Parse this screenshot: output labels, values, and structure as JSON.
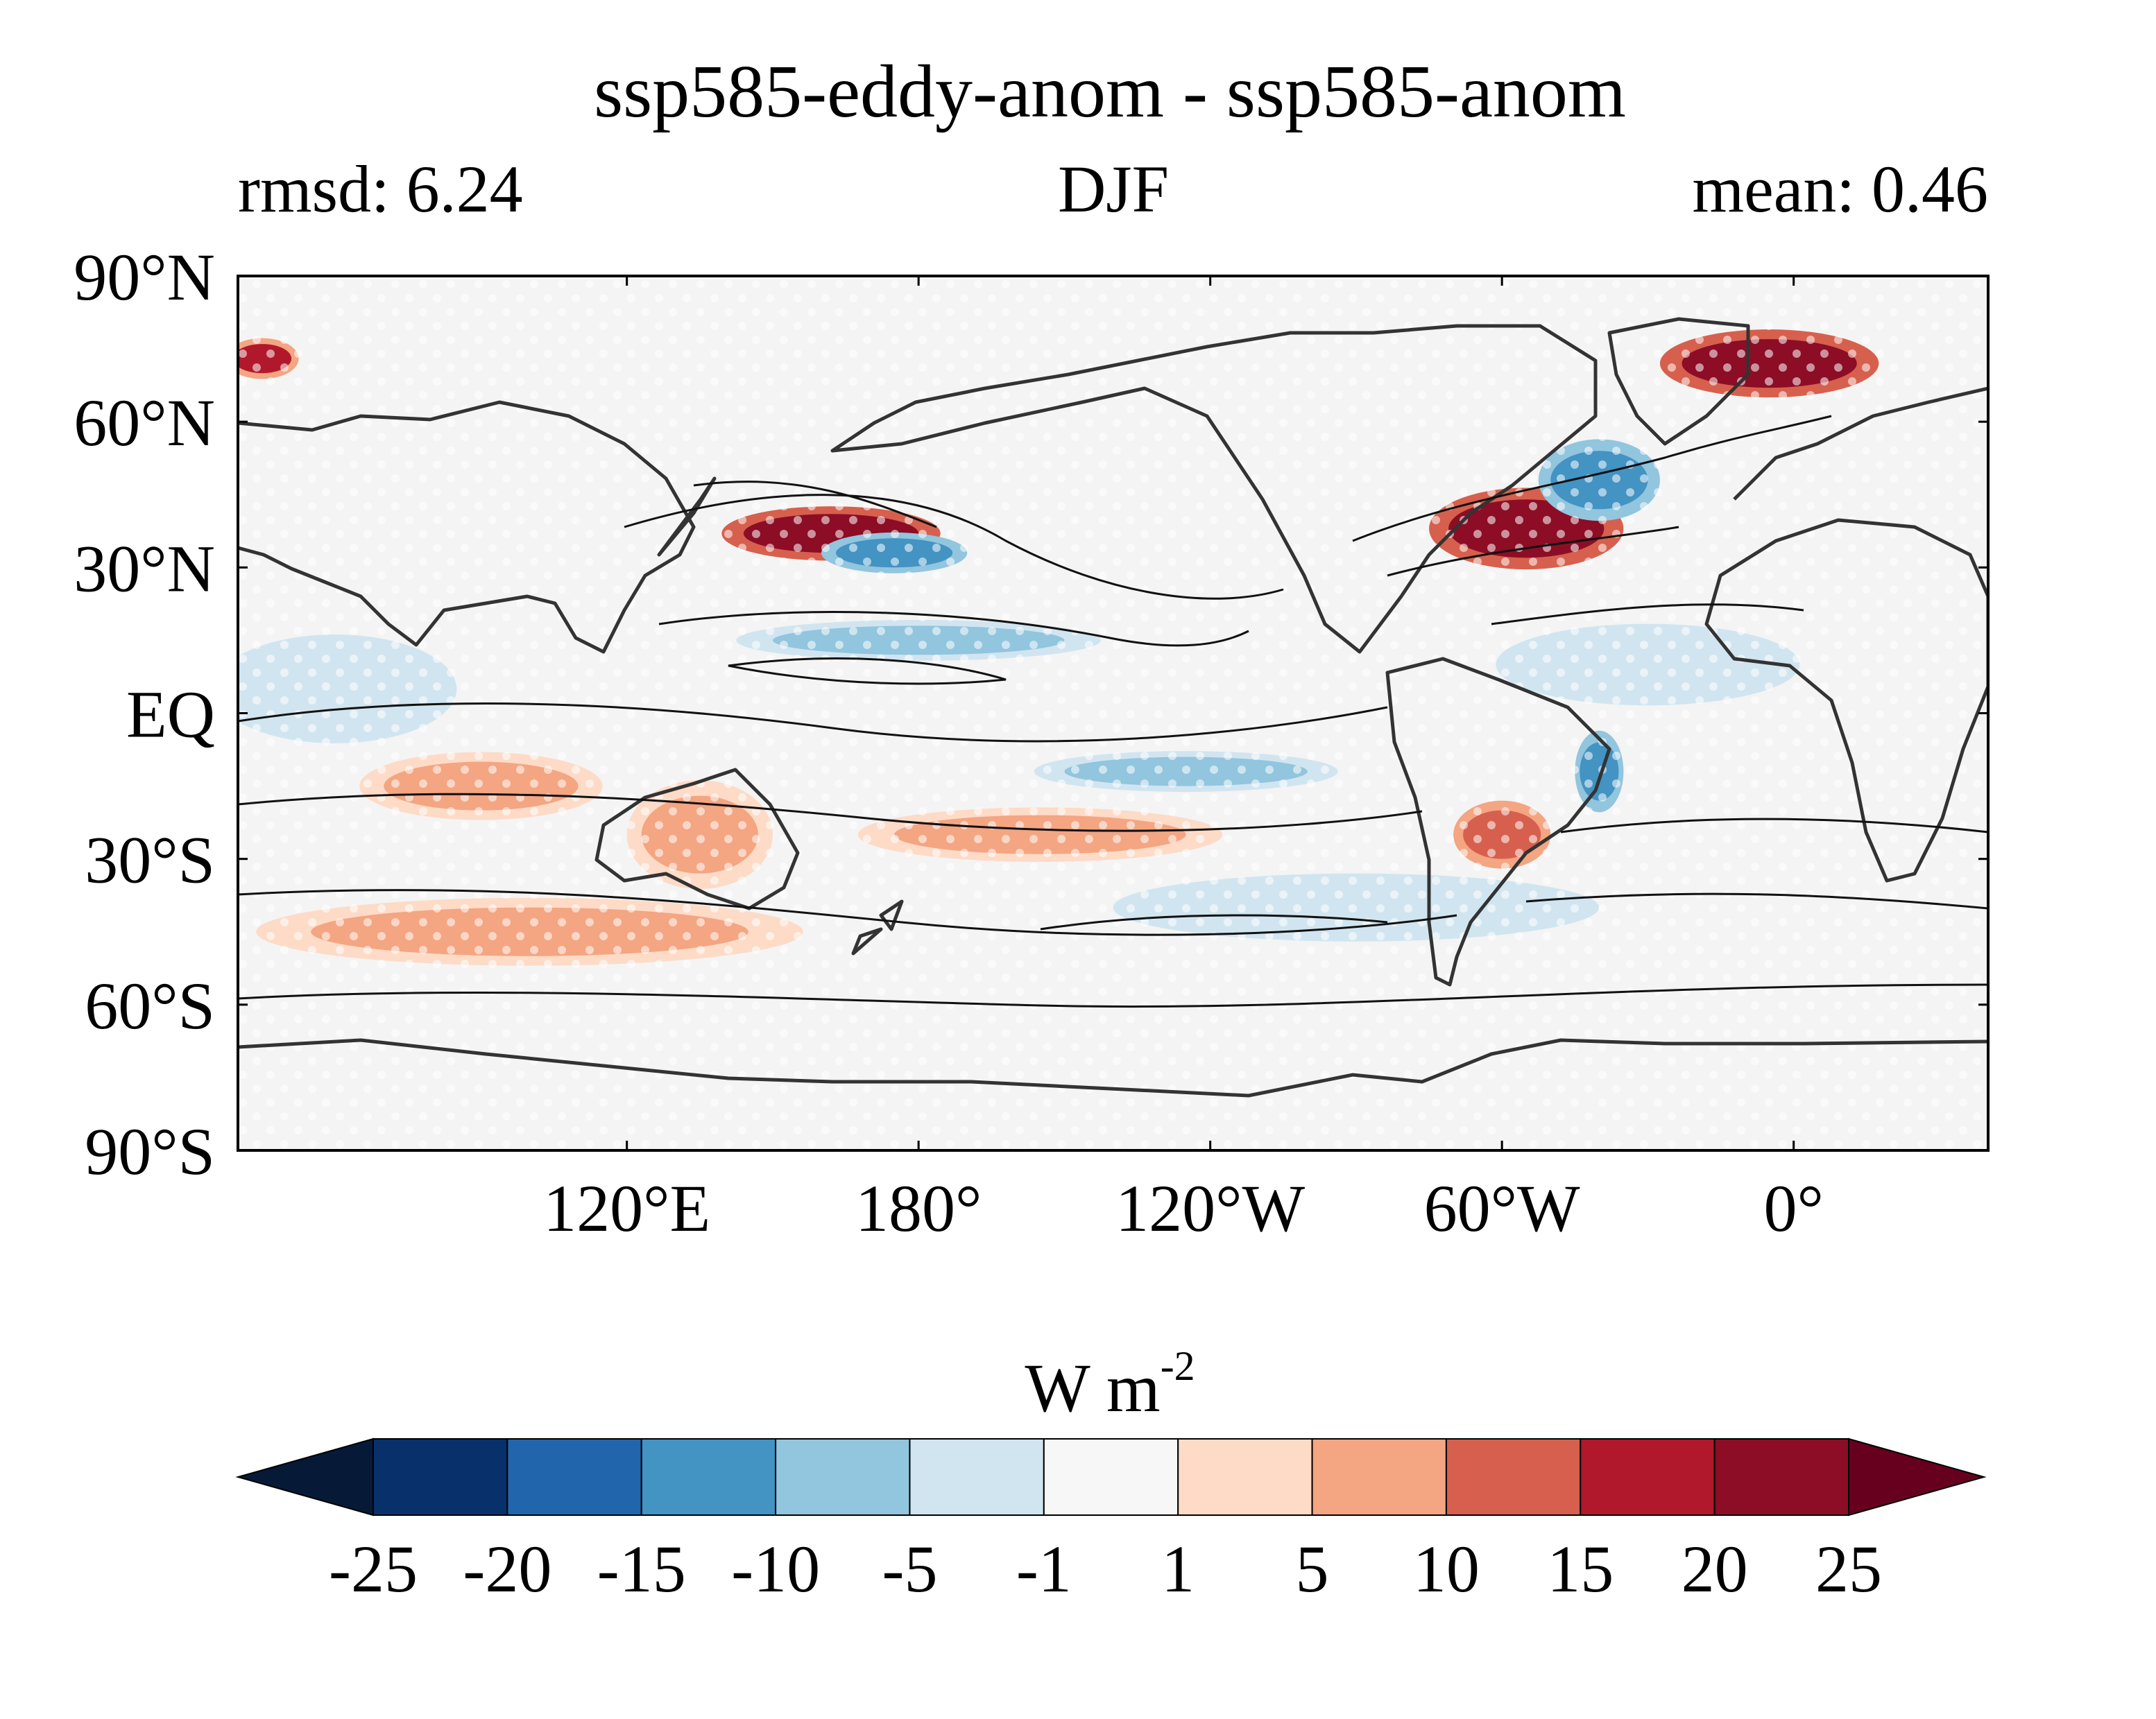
{
  "title": "ssp585-eddy-anom - ssp585-anom",
  "stats": {
    "left": "rmsd: 6.24",
    "center": "DJF",
    "right": "mean: 0.46"
  },
  "axes": {
    "lat_ticks": [
      {
        "label": "90°N",
        "value": 90
      },
      {
        "label": "60°N",
        "value": 60
      },
      {
        "label": "30°N",
        "value": 30
      },
      {
        "label": "EQ",
        "value": 0
      },
      {
        "label": "30°S",
        "value": -30
      },
      {
        "label": "60°S",
        "value": -60
      },
      {
        "label": "90°S",
        "value": -90
      }
    ],
    "lon_ticks": [
      {
        "label": "120°E",
        "value": 120
      },
      {
        "label": "180°",
        "value": 180
      },
      {
        "label": "120°W",
        "value": 240
      },
      {
        "label": "60°W",
        "value": 300
      },
      {
        "label": "0°",
        "value": 360
      }
    ],
    "lon_range": [
      40,
      400
    ],
    "lat_range": [
      -90,
      90
    ]
  },
  "colorbar": {
    "unit_base": "W m",
    "unit_exp": "-2",
    "ticks": [
      "-25",
      "-20",
      "-15",
      "-10",
      "-5",
      "-1",
      "1",
      "5",
      "10",
      "15",
      "20",
      "25"
    ],
    "colors": {
      "extend_low": "#061a38",
      "bins": [
        "#08306b",
        "#2166ac",
        "#4393c3",
        "#92c5de",
        "#d1e5f0",
        "#f7f7f7",
        "#fddbc7",
        "#f4a582",
        "#d6604d",
        "#b2182b",
        "#8c0d25"
      ],
      "extend_high": "#67001f"
    }
  },
  "features": {
    "anomaly_patches": [
      {
        "lon": 162,
        "lat": 37,
        "rx": 18,
        "ry": 4,
        "level": 20
      },
      {
        "lon": 175,
        "lat": 33,
        "rx": 12,
        "ry": 3,
        "level": -15
      },
      {
        "lon": 305,
        "lat": 38,
        "rx": 16,
        "ry": 6,
        "level": 20
      },
      {
        "lon": 320,
        "lat": 48,
        "rx": 10,
        "ry": 6,
        "level": -15
      },
      {
        "lon": 355,
        "lat": 72,
        "rx": 18,
        "ry": 5,
        "level": 20
      },
      {
        "lon": 45,
        "lat": 73,
        "rx": 6,
        "ry": 3,
        "level": 15
      },
      {
        "lon": 180,
        "lat": 15,
        "rx": 30,
        "ry": 3,
        "level": -10
      },
      {
        "lon": 235,
        "lat": -12,
        "rx": 25,
        "ry": 3,
        "level": -10
      },
      {
        "lon": 135,
        "lat": -25,
        "rx": 12,
        "ry": 8,
        "level": 5
      },
      {
        "lon": 205,
        "lat": -25,
        "rx": 30,
        "ry": 4,
        "level": 5
      },
      {
        "lon": 300,
        "lat": -25,
        "rx": 8,
        "ry": 5,
        "level": 10
      },
      {
        "lon": 320,
        "lat": -12,
        "rx": 4,
        "ry": 6,
        "level": -15
      },
      {
        "lon": 90,
        "lat": -15,
        "rx": 20,
        "ry": 5,
        "level": 5
      },
      {
        "lon": 270,
        "lat": -40,
        "rx": 40,
        "ry": 5,
        "level": -5
      },
      {
        "lon": 100,
        "lat": -45,
        "rx": 45,
        "ry": 5,
        "level": 5
      },
      {
        "lon": 330,
        "lat": 10,
        "rx": 25,
        "ry": 6,
        "level": -5
      },
      {
        "lon": 60,
        "lat": 5,
        "rx": 20,
        "ry": 8,
        "level": -5
      }
    ]
  }
}
